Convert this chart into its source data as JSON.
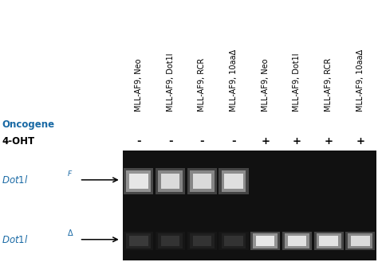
{
  "fig_width": 4.74,
  "fig_height": 3.34,
  "dpi": 100,
  "background_color": "#ffffff",
  "gel_bg_color": "#111111",
  "lane_labels": [
    "MLL-AF9, Neo",
    "MLL-AF9, Dot1l",
    "MLL-AF9, RCR",
    "MLL-AF9, 10aaΔ",
    "MLL-AF9, Neo",
    "MLL-AF9, Dot1l",
    "MLL-AF9, RCR",
    "MLL-AF9, 10aaΔ"
  ],
  "oht_values": [
    "-",
    "-",
    "-",
    "-",
    "+",
    "+",
    "+",
    "+"
  ],
  "oncogene_label": "Oncogene",
  "oht_label": "4-OHT",
  "num_lanes": 8,
  "upper_band_intensities": [
    0.92,
    0.82,
    0.82,
    0.86,
    0.0,
    0.0,
    0.0,
    0.0
  ],
  "lower_band_intensities": [
    0.12,
    0.1,
    0.1,
    0.1,
    0.92,
    0.88,
    0.88,
    0.82
  ],
  "text_color_label": "#1a6aa5",
  "text_color_black": "#000000",
  "label_fontsize": 8.5,
  "rotlabel_fontsize": 7.0,
  "oht_fontsize": 9.5,
  "italic_fontsize": 8.5,
  "arrow_fontsize": 9
}
